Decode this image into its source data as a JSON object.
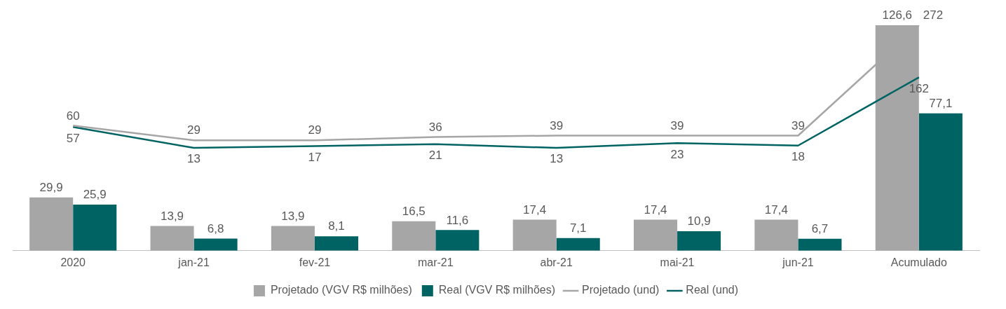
{
  "chart_data": {
    "type": "bar",
    "categories": [
      "2020",
      "jan-21",
      "fev-21",
      "mar-21",
      "abr-21",
      "mai-21",
      "jun-21",
      "Acumulado"
    ],
    "series": [
      {
        "name": "Projetado (VGV R$ milhões)",
        "color": "#a6a6a6",
        "values": [
          29.9,
          13.9,
          13.9,
          16.5,
          17.4,
          17.4,
          17.4,
          126.6
        ],
        "value_labels": [
          "29,9",
          "13,9",
          "13,9",
          "16,5",
          "17,4",
          "17,4",
          "17,4",
          "126,6"
        ]
      },
      {
        "name": "Real (VGV R$ milhões)",
        "color": "#006363",
        "values": [
          25.9,
          6.8,
          8.1,
          11.6,
          7.1,
          10.9,
          6.7,
          77.1
        ],
        "value_labels": [
          "25,9",
          "6,8",
          "8,1",
          "11,6",
          "7,1",
          "10,9",
          "6,7",
          "77,1"
        ]
      },
      {
        "name": "Projetado (und)",
        "type": "line",
        "axis": "y2",
        "color": "#a6a6a6",
        "values": [
          60,
          29,
          29,
          36,
          39,
          39,
          39,
          272
        ]
      },
      {
        "name": "Real (und)",
        "type": "line",
        "axis": "y2",
        "color": "#006363",
        "values": [
          57,
          13,
          17,
          21,
          13,
          23,
          18,
          162
        ]
      }
    ],
    "data_labels": true,
    "legend": "bottom",
    "grid": false,
    "tick_labels": "x"
  }
}
